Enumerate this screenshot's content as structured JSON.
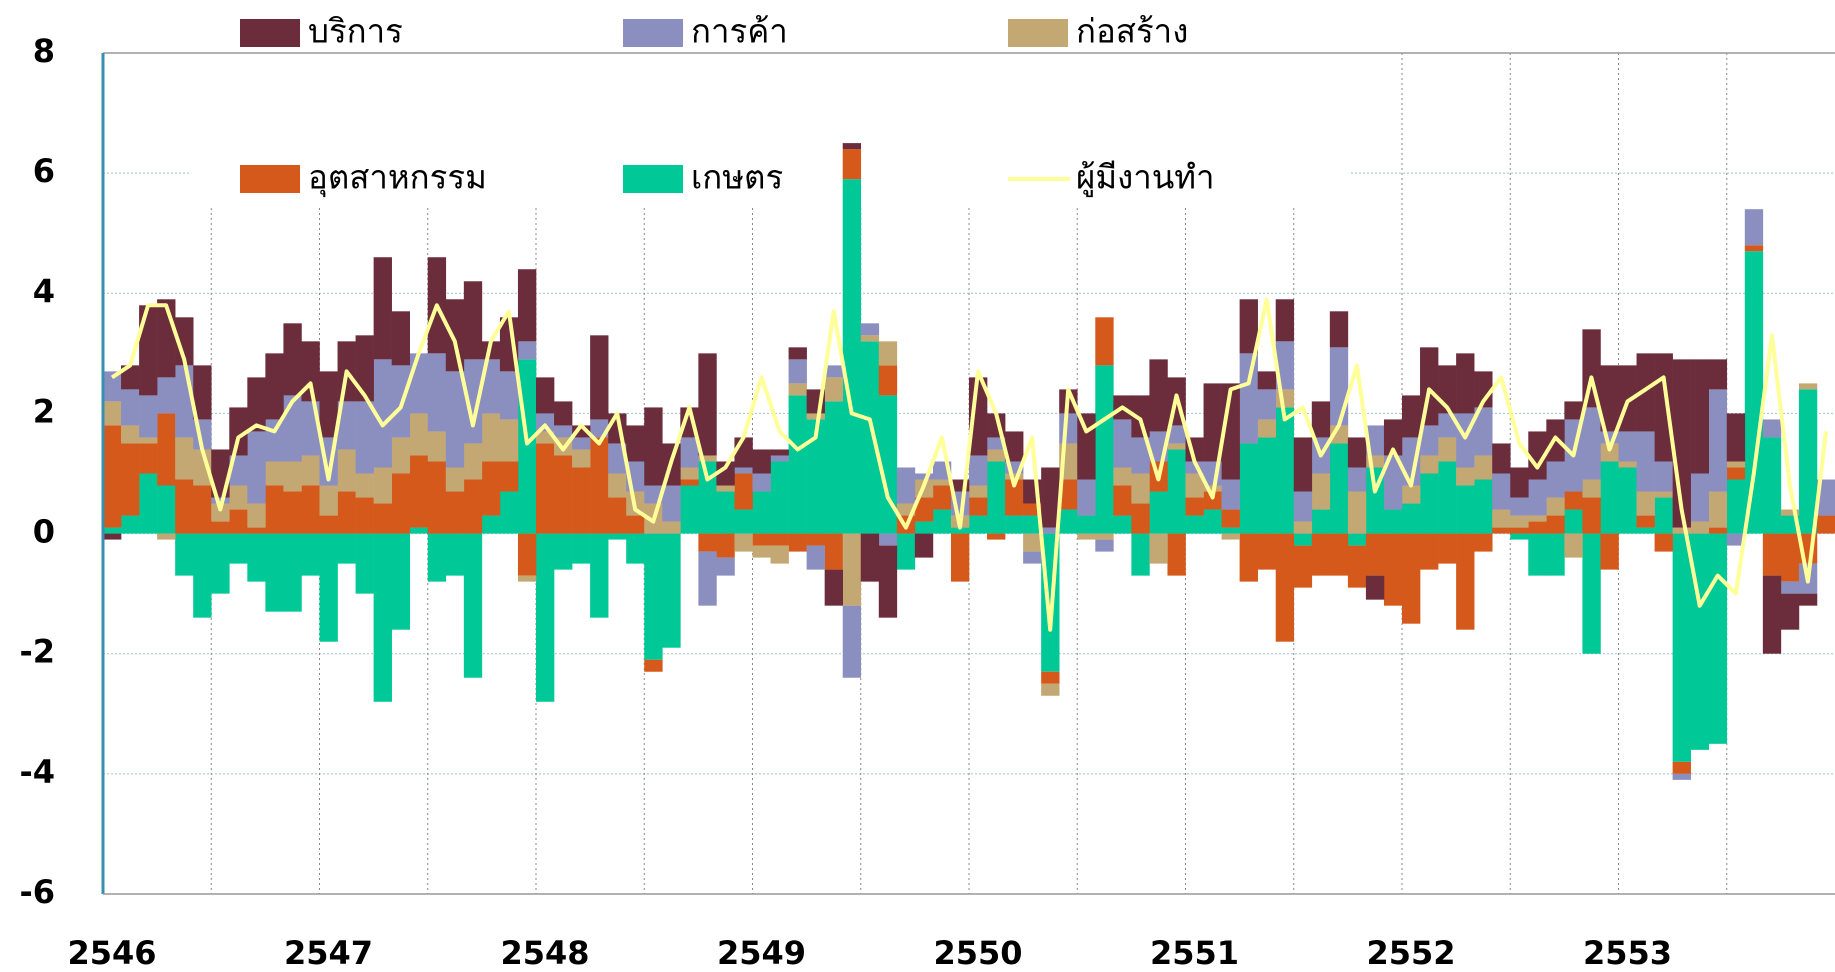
{
  "chart_data": {
    "type": "bar",
    "stacked": true,
    "categories": [
      "2546",
      null,
      null,
      null,
      null,
      null,
      null,
      null,
      null,
      null,
      null,
      null,
      "2547",
      null,
      null,
      null,
      null,
      null,
      null,
      null,
      null,
      null,
      null,
      null,
      "2548",
      null,
      null,
      null,
      null,
      null,
      null,
      null,
      null,
      null,
      null,
      null,
      "2549",
      null,
      null,
      null,
      null,
      null,
      null,
      null,
      null,
      null,
      null,
      null,
      "2550",
      null,
      null,
      null,
      null,
      null,
      null,
      null,
      null,
      null,
      null,
      null,
      "2551",
      null,
      null,
      null,
      null,
      null,
      null,
      null,
      null,
      null,
      null,
      null,
      "2552",
      null,
      null,
      null,
      null,
      null,
      null,
      null,
      null,
      null,
      null,
      null,
      "2553",
      null,
      null,
      null,
      null,
      null,
      null,
      null,
      null,
      null,
      null,
      null
    ],
    "ylim": [
      -6,
      8
    ],
    "yticks": [
      -6,
      -4,
      -2,
      0,
      2,
      4,
      6,
      8
    ],
    "grid": true,
    "series": [
      {
        "name": "เกษตร",
        "color": "#00c896",
        "values": [
          0.1,
          0.3,
          1.0,
          0.8,
          -0.7,
          -1.4,
          -1.0,
          -0.5,
          -0.8,
          -1.3,
          -1.3,
          -0.7,
          -1.8,
          -0.5,
          -1.0,
          -2.8,
          -1.6,
          0.1,
          -0.8,
          -0.7,
          -2.4,
          0.3,
          0.7,
          2.9,
          -2.8,
          -0.6,
          -0.5,
          -1.4,
          -0.1,
          -0.5,
          -2.1,
          -1.9,
          0.8,
          1.2,
          0.7,
          0.4,
          0.7,
          1.2,
          2.3,
          1.9,
          2.2,
          5.9,
          3.2,
          2.3,
          -0.6,
          0.2,
          0.4,
          0.1,
          0.3,
          1.2,
          0.3,
          0.3,
          -2.3,
          0.4,
          0.3,
          2.8,
          0.3,
          -0.7,
          0.7,
          1.4,
          0.3,
          0.4,
          0.1,
          1.5,
          1.6,
          2.1,
          -0.2,
          0.4,
          1.5,
          -0.2,
          1.1,
          0.4,
          0.5,
          1.0,
          1.2,
          0.8,
          0.9,
          0.0,
          -0.1,
          -0.7,
          -0.7,
          0.4,
          -2.0,
          1.2,
          1.1,
          0.1,
          0.6,
          -3.8,
          -3.6,
          -3.5,
          0.9,
          4.7,
          1.6,
          0.3,
          2.4,
          0.0
        ]
      },
      {
        "name": "อุตสาหกรรม",
        "color": "#d4591a",
        "values": [
          1.7,
          1.2,
          0.5,
          1.2,
          0.9,
          0.8,
          0.2,
          0.4,
          0.1,
          0.8,
          0.7,
          0.8,
          0.3,
          0.7,
          0.6,
          0.5,
          1.0,
          1.2,
          1.2,
          0.7,
          0.9,
          0.9,
          0.5,
          -0.7,
          1.5,
          1.3,
          1.1,
          1.6,
          0.6,
          0.3,
          -0.2,
          0.0,
          0.1,
          -0.3,
          -0.4,
          0.6,
          -0.2,
          -0.2,
          -0.3,
          -0.2,
          -0.6,
          0.5,
          0.0,
          0.5,
          0.3,
          0.4,
          0.4,
          -0.8,
          0.3,
          -0.1,
          0.6,
          0.2,
          -0.2,
          0.5,
          0.0,
          0.8,
          0.5,
          0.5,
          0.5,
          -0.7,
          0.3,
          0.3,
          0.3,
          -0.8,
          -0.6,
          -1.8,
          -0.7,
          -0.7,
          -0.7,
          -0.7,
          -0.7,
          -1.2,
          -1.5,
          -0.6,
          -0.5,
          -1.6,
          -0.3,
          0.1,
          0.1,
          0.2,
          0.3,
          0.3,
          0.6,
          -0.6,
          0.0,
          0.2,
          -0.3,
          -0.2,
          0.0,
          0.1,
          0.2,
          0.1,
          -0.7,
          -0.8,
          -0.5,
          0.3
        ]
      },
      {
        "name": "ก่อสร้าง",
        "color": "#c4a873",
        "values": [
          0.4,
          0.3,
          0.1,
          -0.1,
          0.7,
          0.6,
          0.3,
          0.4,
          0.4,
          0.4,
          0.5,
          0.5,
          0.5,
          0.7,
          0.4,
          0.6,
          0.6,
          0.7,
          0.5,
          0.4,
          0.6,
          0.8,
          0.7,
          -0.1,
          0.2,
          0.3,
          0.3,
          0.0,
          0.4,
          0.4,
          0.5,
          0.2,
          0.2,
          0.1,
          0.1,
          -0.3,
          -0.2,
          -0.3,
          0.2,
          0.1,
          0.4,
          -1.2,
          0.1,
          0.4,
          0.2,
          0.3,
          0.1,
          0.2,
          0.2,
          0.2,
          0.1,
          -0.3,
          -0.2,
          0.6,
          -0.1,
          -0.1,
          0.3,
          0.5,
          -0.5,
          0.1,
          0.4,
          0.1,
          -0.1,
          0.0,
          0.3,
          0.3,
          0.2,
          0.6,
          0.3,
          0.7,
          0.2,
          0.0,
          0.3,
          0.3,
          0.4,
          0.3,
          0.4,
          0.3,
          0.2,
          0.1,
          0.3,
          -0.4,
          0.3,
          0.3,
          0.1,
          0.4,
          0.1,
          0.1,
          0.2,
          0.6,
          0.1,
          0.0,
          0.0,
          0.1,
          0.1,
          0.0
        ]
      },
      {
        "name": "การค้า",
        "color": "#8b8fc0",
        "values": [
          0.5,
          0.6,
          0.7,
          0.6,
          1.2,
          0.5,
          0.1,
          0.5,
          1.2,
          0.7,
          1.1,
          0.9,
          0.8,
          0.8,
          1.2,
          1.8,
          1.2,
          1.0,
          1.3,
          1.6,
          1.4,
          0.9,
          0.8,
          0.3,
          0.3,
          0.2,
          0.2,
          0.3,
          0.5,
          0.5,
          0.3,
          0.6,
          0.5,
          -0.9,
          -0.3,
          0.1,
          0.3,
          0.1,
          0.4,
          -0.4,
          0.2,
          -1.2,
          0.2,
          -0.2,
          0.6,
          0.1,
          0.3,
          0.4,
          0.5,
          0.2,
          0.2,
          -0.2,
          0.1,
          0.5,
          0.6,
          -0.2,
          0.8,
          0.6,
          0.5,
          0.3,
          0.2,
          0.4,
          0.5,
          1.5,
          0.5,
          0.8,
          0.5,
          0.6,
          1.3,
          0.4,
          0.5,
          0.9,
          0.8,
          0.5,
          0.4,
          0.9,
          0.8,
          0.6,
          0.3,
          0.6,
          0.6,
          1.2,
          1.2,
          0.2,
          0.5,
          1.0,
          0.5,
          -0.1,
          0.8,
          1.7,
          -0.2,
          0.6,
          0.3,
          -0.2,
          -0.5,
          0.6
        ]
      },
      {
        "name": "บริการ",
        "color": "#6b2d3b",
        "values": [
          -0.1,
          0.4,
          1.5,
          1.3,
          0.8,
          0.9,
          0.8,
          0.8,
          0.9,
          1.1,
          1.2,
          1.0,
          1.1,
          1.0,
          1.1,
          1.7,
          0.9,
          0.0,
          1.6,
          1.2,
          1.3,
          0.3,
          0.9,
          1.2,
          0.6,
          0.4,
          0.2,
          1.4,
          0.5,
          0.6,
          1.3,
          0.7,
          0.5,
          1.7,
          0.4,
          0.5,
          0.4,
          0.1,
          0.2,
          0.4,
          -0.6,
          0.1,
          -0.8,
          -1.2,
          0.0,
          -0.4,
          0.0,
          0.2,
          1.3,
          0.4,
          0.5,
          0.4,
          1.0,
          0.4,
          1.1,
          0.0,
          0.4,
          0.7,
          1.2,
          0.8,
          0.4,
          1.3,
          1.6,
          0.9,
          0.3,
          0.7,
          0.9,
          0.6,
          0.6,
          0.5,
          -0.4,
          0.6,
          0.7,
          1.3,
          0.8,
          1.0,
          0.6,
          0.5,
          0.5,
          0.8,
          0.7,
          0.3,
          1.3,
          1.1,
          1.1,
          1.3,
          1.8,
          2.8,
          1.9,
          0.5,
          0.8,
          0.0,
          -1.3,
          -0.6,
          -0.2,
          0.0
        ]
      },
      {
        "name": "ผู้มีงานทำ",
        "type": "line",
        "color": "#ffff99",
        "values": [
          2.6,
          2.8,
          3.8,
          3.8,
          2.9,
          1.4,
          0.4,
          1.6,
          1.8,
          1.7,
          2.2,
          2.5,
          0.9,
          2.7,
          2.3,
          1.8,
          2.1,
          3.0,
          3.8,
          3.2,
          1.8,
          3.2,
          3.7,
          1.5,
          1.8,
          1.4,
          1.8,
          1.5,
          2.0,
          0.4,
          0.2,
          1.2,
          2.1,
          0.9,
          1.1,
          1.6,
          2.6,
          1.7,
          1.4,
          1.6,
          3.7,
          2.0,
          1.9,
          0.6,
          0.1,
          0.8,
          1.6,
          0.1,
          2.7,
          2.0,
          0.8,
          1.6,
          -1.6,
          2.4,
          1.7,
          1.9,
          2.1,
          1.9,
          0.9,
          2.3,
          1.2,
          0.6,
          2.4,
          2.5,
          3.9,
          1.9,
          2.1,
          1.3,
          1.8,
          2.8,
          0.7,
          1.4,
          0.8,
          2.4,
          2.1,
          1.6,
          2.2,
          2.6,
          1.5,
          1.1,
          1.6,
          1.3,
          2.6,
          1.4,
          2.2,
          2.4,
          2.6,
          0.4,
          -1.2,
          -0.7,
          -1.0,
          1.0,
          3.3,
          0.8,
          -0.8,
          1.7
        ]
      }
    ]
  }
}
